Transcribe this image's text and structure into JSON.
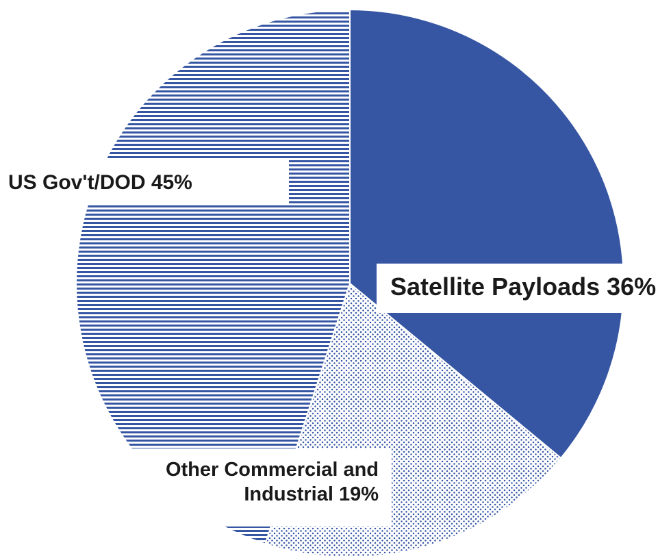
{
  "chart_data": {
    "type": "pie",
    "title": "",
    "slices": [
      {
        "label": "Satellite Payloads 36%",
        "value": 36,
        "color": "#3656a4",
        "pattern": "solid"
      },
      {
        "label": "Other Commercial and Industrial 19%",
        "label_lines": [
          "Other Commercial and",
          "Industrial 19%"
        ],
        "value": 19,
        "color": "#3656a4",
        "pattern": "dots"
      },
      {
        "label": "US Gov't/DOD 45%",
        "value": 45,
        "color": "#3656a4",
        "pattern": "horizontal-lines"
      }
    ],
    "start_angle": "12 o'clock",
    "direction": "clockwise",
    "legend": "none"
  }
}
